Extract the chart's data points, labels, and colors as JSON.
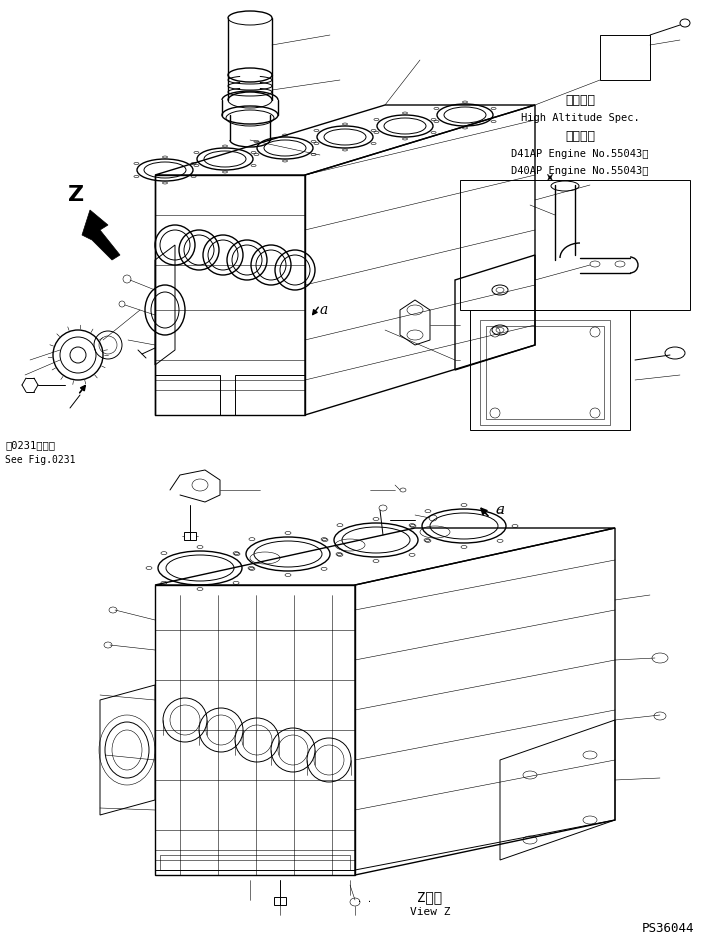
{
  "background_color": "#ffffff",
  "line_color": "#000000",
  "page_id": "PS36044",
  "figsize": [
    7.11,
    9.4
  ],
  "dpi": 100,
  "annotations": {
    "z_label": "Z",
    "a_label": "a",
    "view_label_jp": "Z　視",
    "view_label_en": "View Z",
    "ref_jp": "第0231図参照",
    "ref_en": "See Fig.0231",
    "spec_title_jp": "高地仕様",
    "spec_title_en": "High Altitude Spec.",
    "spec_subtitle_jp": "適用号機",
    "spec_line1": "D41AP Engine No.55043～",
    "spec_line2": "D40AP Engine No.55043～"
  }
}
